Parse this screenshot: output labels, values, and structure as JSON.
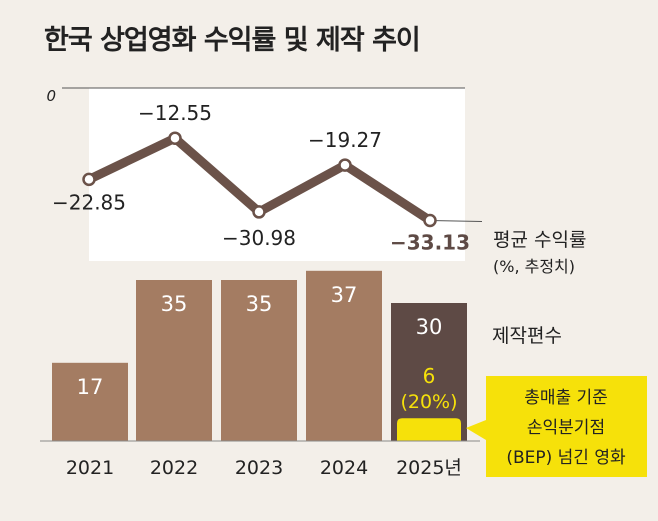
{
  "title": "한국 상업영화 수익률 및 제작 추이",
  "chart_data": [
    {
      "type": "line",
      "title": "평균 수익률",
      "unit_note": "(%, 추정치)",
      "x": [
        "2021",
        "2022",
        "2023",
        "2024",
        "2025년"
      ],
      "values": [
        -22.85,
        -12.55,
        -30.98,
        -19.27,
        -33.13
      ],
      "value_labels": [
        "−22.85",
        "−12.55",
        "−30.98",
        "−19.27",
        "−33.13"
      ],
      "zero_label": "0",
      "ylim": [
        -36,
        0
      ]
    },
    {
      "type": "bar",
      "series_name": "제작편수",
      "categories": [
        "2021",
        "2022",
        "2023",
        "2024",
        "2025년"
      ],
      "values": [
        17,
        35,
        35,
        37,
        30
      ],
      "value_labels": [
        "17",
        "35",
        "35",
        "37",
        "30"
      ],
      "sub_bar": {
        "category": "2025년",
        "value": 6,
        "label": "6",
        "percent_label": "(20%)",
        "callout": [
          "총매출 기준",
          "손익분기점",
          "(BEP) 넘긴 영화"
        ]
      }
    }
  ],
  "colors": {
    "background": "#f3efe9",
    "line": "#6b5249",
    "bar": "#a47c62",
    "bar_dark": "#5e4a45",
    "highlight": "#f6e10a"
  }
}
